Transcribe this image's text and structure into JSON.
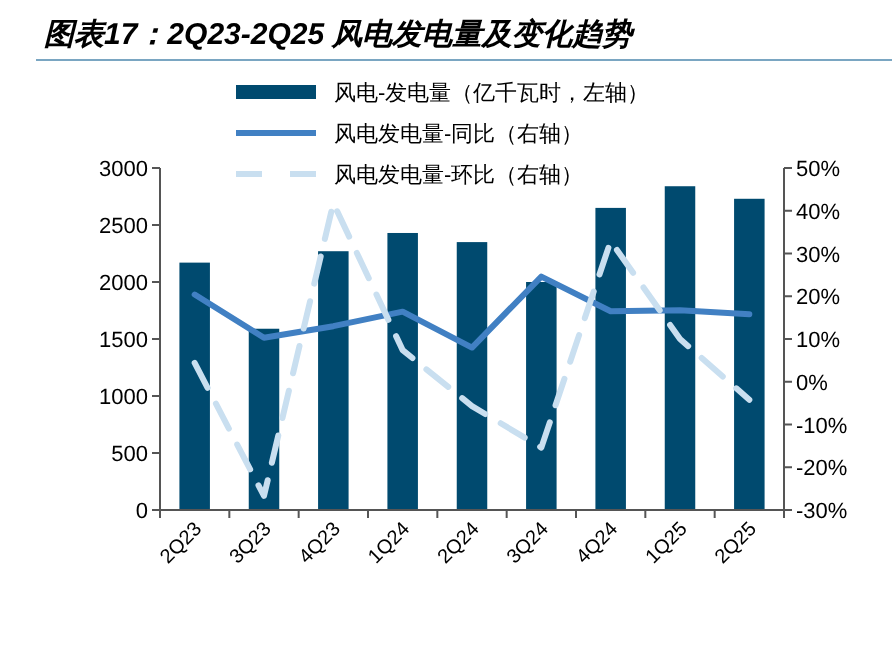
{
  "chart_data": {
    "type": "bar",
    "title": "图表17：2Q23-2Q25 风电发电量及变化趋势",
    "categories": [
      "2Q23",
      "3Q23",
      "4Q23",
      "1Q24",
      "2Q24",
      "3Q24",
      "4Q24",
      "1Q25",
      "2Q25"
    ],
    "series": [
      {
        "name": "风电-发电量（亿千瓦时，左轴）",
        "color": "#004a6f",
        "values": [
          2170,
          1590,
          2270,
          2430,
          2350,
          2000,
          2650,
          2840,
          2730
        ]
      },
      {
        "name": "风电发电量-同比（右轴）",
        "type": "line",
        "axis": "y2",
        "color": "#4180c3",
        "line_style": "solid",
        "values": [
          20.4,
          10.3,
          13,
          16.4,
          8,
          24.6,
          16.5,
          16.7,
          15.8
        ]
      },
      {
        "name": "风电发电量-环比（右轴）",
        "type": "line",
        "axis": "y2",
        "color": "#c9dff0",
        "line_style": "dashed",
        "values": [
          4.4,
          -26.7,
          41.8,
          7.4,
          -5.7,
          -15.4,
          32.9,
          10,
          -4.2
        ]
      }
    ],
    "ylim": [
      0,
      3000
    ],
    "yticks": [
      0,
      500,
      1000,
      1500,
      2000,
      2500,
      3000
    ],
    "y2lim": [
      -30,
      50
    ],
    "y2ticks": [
      {
        "value": -30,
        "label": "-30%"
      },
      {
        "value": -20,
        "label": "-20%"
      },
      {
        "value": -10,
        "label": "-10%"
      },
      {
        "value": 0,
        "label": "0%"
      },
      {
        "value": 10,
        "label": "10%"
      },
      {
        "value": 20,
        "label": "20%"
      },
      {
        "value": 30,
        "label": "30%"
      },
      {
        "value": 40,
        "label": "40%"
      },
      {
        "value": 50,
        "label": "50%"
      }
    ],
    "legend": "top",
    "grid": false
  }
}
